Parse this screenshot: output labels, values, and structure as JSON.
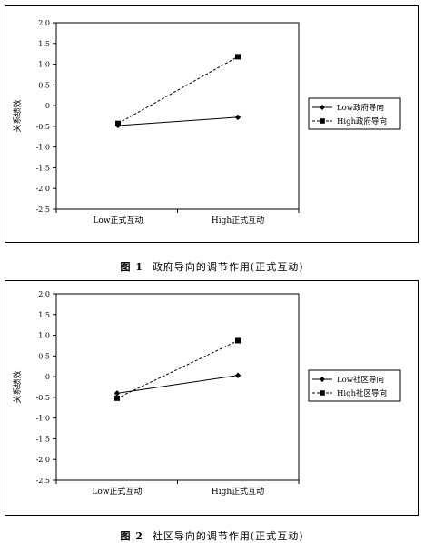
{
  "chart_data": [
    {
      "type": "line",
      "ylabel": "关系绩效",
      "xlabel": "",
      "categories": [
        "Low正式互动",
        "High正式互动"
      ],
      "ylim": [
        -2.5,
        2.0
      ],
      "yticks": [
        "2.0",
        "1.5",
        "1.0",
        "0.5",
        "0",
        "-0.5",
        "-1.0",
        "-1.5",
        "-2.0",
        "-2.5"
      ],
      "legend_position": "right",
      "series": [
        {
          "name": "Low政府导向",
          "values": [
            -0.48,
            -0.28
          ],
          "marker": "diamond",
          "line": "solid"
        },
        {
          "name": "High政府导向",
          "values": [
            -0.43,
            1.18
          ],
          "marker": "square",
          "line": "dashed"
        }
      ]
    },
    {
      "type": "line",
      "ylabel": "关系绩效",
      "xlabel": "",
      "categories": [
        "Low正式互动",
        "High正式互动"
      ],
      "ylim": [
        -2.5,
        2.0
      ],
      "yticks": [
        "2.0",
        "1.5",
        "1.0",
        "0.5",
        "0",
        "-0.5",
        "-1.0",
        "-1.5",
        "-2.0",
        "-2.5"
      ],
      "legend_position": "right",
      "series": [
        {
          "name": "Low社区导向",
          "values": [
            -0.4,
            0.03
          ],
          "marker": "diamond",
          "line": "solid"
        },
        {
          "name": "High社区导向",
          "values": [
            -0.52,
            0.87
          ],
          "marker": "square",
          "line": "dashed"
        }
      ]
    }
  ],
  "captions": [
    {
      "number": "图 1",
      "text": "政府导向的调节作用(正式互动)"
    },
    {
      "number": "图 2",
      "text": "社区导向的调节作用(正式互动)"
    }
  ]
}
